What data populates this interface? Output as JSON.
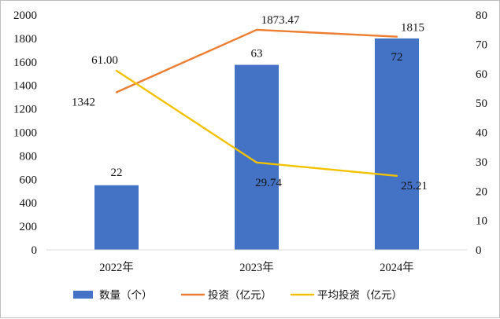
{
  "chart_data": {
    "type": "bar",
    "categories": [
      "2022年",
      "2023年",
      "2024年"
    ],
    "y_left": {
      "min": 0,
      "max": 2000,
      "ticks": [
        0,
        200,
        400,
        600,
        800,
        1000,
        1200,
        1400,
        1600,
        1800,
        2000
      ]
    },
    "y_right": {
      "min": 0,
      "max": 80,
      "ticks": [
        0,
        10,
        20,
        30,
        40,
        50,
        60,
        70,
        80
      ]
    },
    "grid": false,
    "legend_position": "bottom",
    "series": [
      {
        "name": "数量（个）",
        "kind": "bar",
        "axis": "right",
        "color": "#4472C4",
        "values": [
          22,
          63,
          72
        ],
        "labels": [
          "22",
          "63",
          "72"
        ]
      },
      {
        "name": "投资（亿元）",
        "kind": "line",
        "axis": "left",
        "color": "#ED7D31",
        "values": [
          1342,
          1873.47,
          1815
        ],
        "labels": [
          "1342",
          "1873.47",
          "1815"
        ]
      },
      {
        "name": "平均投资（亿元）",
        "kind": "line",
        "axis": "right",
        "color": "#F2C200",
        "values": [
          61.0,
          29.74,
          25.21
        ],
        "labels": [
          "61.00",
          "29.74",
          "25.21"
        ]
      }
    ]
  }
}
